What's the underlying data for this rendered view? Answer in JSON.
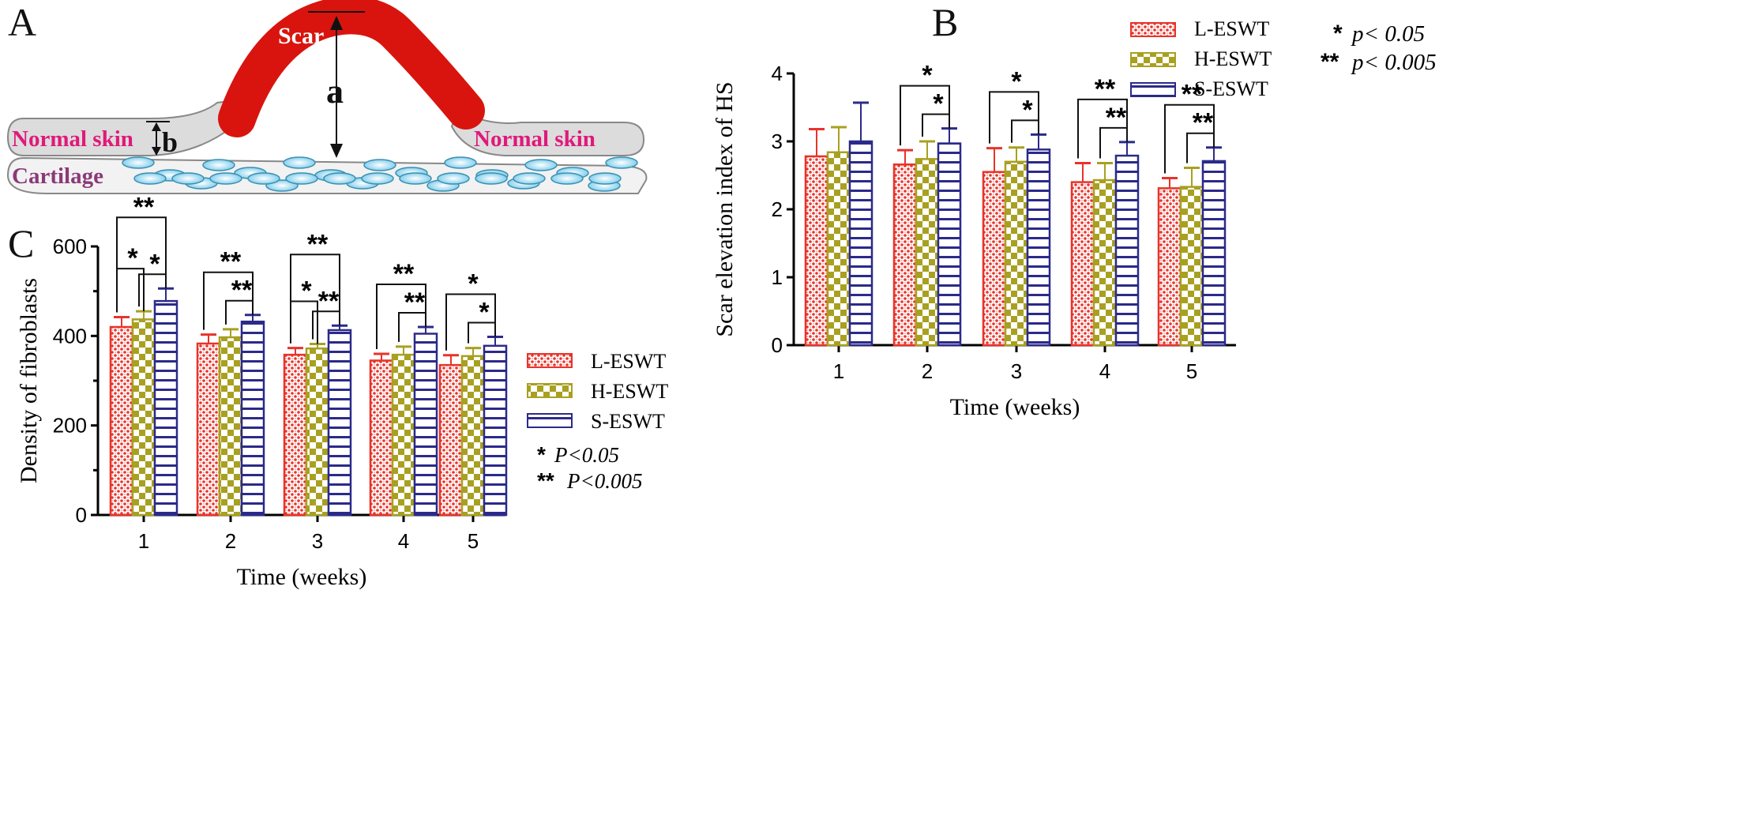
{
  "panels": {
    "a": "A",
    "b": "B",
    "c": "C"
  },
  "diagram": {
    "scar_label": "Scar",
    "normal_skin_left": "Normal skin",
    "normal_skin_right": "Normal skin",
    "cartilage_label": "Cartilage",
    "measure_a": "a",
    "measure_b": "b",
    "colors": {
      "scar": "#d9140e",
      "skin_text": "#e0197a",
      "cartilage_text": "#8b3a78",
      "cell": "#8fd3ef"
    }
  },
  "legend": {
    "series": [
      "L-ESWT",
      "H-ESWT",
      "S-ESWT"
    ],
    "sig1_stars": "*",
    "sig1_text": "p< 0.05",
    "sig2_stars": "**",
    "sig2_text": "p< 0.005",
    "c_sig1_stars": "*",
    "c_sig1_text": "P<0.05",
    "c_sig2_stars": "**",
    "c_sig2_text": "P<0.005"
  },
  "chart_data": [
    {
      "id": "B",
      "type": "bar",
      "title": "",
      "xlabel": "Time (weeks)",
      "ylabel": "Scar elevation index of HS",
      "categories": [
        "1",
        "2",
        "3",
        "4",
        "5"
      ],
      "ylim": [
        0,
        4
      ],
      "yticks": [
        "0",
        "1",
        "2",
        "3",
        "4"
      ],
      "series": [
        {
          "name": "L-ESWT",
          "color": "#e8332a",
          "values": [
            2.78,
            2.66,
            2.55,
            2.4,
            2.31
          ],
          "errors": [
            0.4,
            0.21,
            0.35,
            0.28,
            0.15
          ]
        },
        {
          "name": "H-ESWT",
          "color": "#a8a020",
          "values": [
            2.84,
            2.74,
            2.7,
            2.43,
            2.33
          ],
          "errors": [
            0.37,
            0.26,
            0.21,
            0.25,
            0.28
          ]
        },
        {
          "name": "S-ESWT",
          "color": "#2b2a8a",
          "values": [
            3.0,
            2.97,
            2.88,
            2.79,
            2.71
          ],
          "errors": [
            0.57,
            0.22,
            0.22,
            0.2,
            0.2
          ]
        }
      ],
      "significance": [
        {
          "category": 1,
          "from": 0,
          "to": 2,
          "label": "*"
        },
        {
          "category": 1,
          "from": 1,
          "to": 2,
          "label": "*"
        },
        {
          "category": 2,
          "from": 0,
          "to": 2,
          "label": "*"
        },
        {
          "category": 2,
          "from": 1,
          "to": 2,
          "label": "*"
        },
        {
          "category": 3,
          "from": 0,
          "to": 2,
          "label": "**"
        },
        {
          "category": 3,
          "from": 1,
          "to": 2,
          "label": "**"
        },
        {
          "category": 4,
          "from": 0,
          "to": 2,
          "label": "**"
        },
        {
          "category": 4,
          "from": 1,
          "to": 2,
          "label": "**"
        }
      ],
      "legend_position": "top-left"
    },
    {
      "id": "C",
      "type": "bar",
      "title": "",
      "xlabel": "Time (weeks)",
      "ylabel": "Density of fibroblasts",
      "categories": [
        "1",
        "2",
        "3",
        "4",
        "5"
      ],
      "ylim": [
        0,
        600
      ],
      "yticks": [
        "0",
        "200",
        "400",
        "600"
      ],
      "series": [
        {
          "name": "L-ESWT",
          "color": "#e8332a",
          "values": [
            420,
            383,
            358,
            345,
            335
          ],
          "errors": [
            22,
            20,
            15,
            15,
            22
          ]
        },
        {
          "name": "H-ESWT",
          "color": "#a8a020",
          "values": [
            437,
            397,
            372,
            358,
            355
          ],
          "errors": [
            18,
            18,
            10,
            18,
            18
          ]
        },
        {
          "name": "S-ESWT",
          "color": "#2b2a8a",
          "values": [
            478,
            432,
            413,
            405,
            378
          ],
          "errors": [
            28,
            15,
            10,
            15,
            20
          ]
        }
      ],
      "significance": [
        {
          "category": 0,
          "from": 0,
          "to": 2,
          "label": "**"
        },
        {
          "category": 0,
          "from": 1,
          "to": 2,
          "label": "*"
        },
        {
          "category": 0,
          "from": 0,
          "to": 1,
          "label": "*"
        },
        {
          "category": 1,
          "from": 0,
          "to": 2,
          "label": "**"
        },
        {
          "category": 1,
          "from": 1,
          "to": 2,
          "label": "**"
        },
        {
          "category": 2,
          "from": 0,
          "to": 2,
          "label": "**"
        },
        {
          "category": 2,
          "from": 1,
          "to": 2,
          "label": "**"
        },
        {
          "category": 2,
          "from": 0,
          "to": 1,
          "label": "*"
        },
        {
          "category": 3,
          "from": 0,
          "to": 2,
          "label": "**"
        },
        {
          "category": 3,
          "from": 1,
          "to": 2,
          "label": "**"
        },
        {
          "category": 4,
          "from": 0,
          "to": 2,
          "label": "*"
        },
        {
          "category": 4,
          "from": 1,
          "to": 2,
          "label": "*"
        }
      ],
      "legend_position": "right"
    }
  ]
}
